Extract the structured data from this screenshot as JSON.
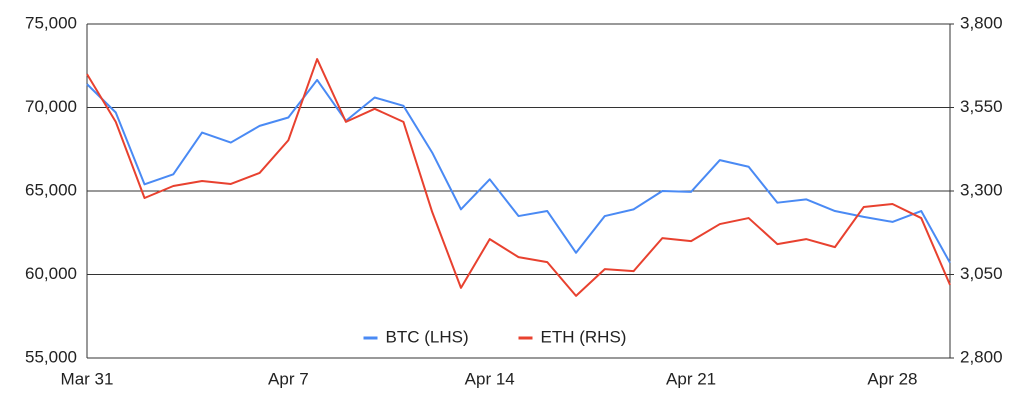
{
  "chart_data": {
    "type": "line",
    "categories": [
      "Mar 31",
      null,
      null,
      null,
      null,
      null,
      null,
      "Apr 7",
      null,
      null,
      null,
      null,
      null,
      null,
      "Apr 14",
      null,
      null,
      null,
      null,
      null,
      null,
      "Apr 21",
      null,
      null,
      null,
      null,
      null,
      null,
      "Apr 28",
      null,
      null
    ],
    "series": [
      {
        "name": "BTC (LHS)",
        "color": "#4a8af4",
        "axis": "y",
        "values": [
          71400,
          69700,
          65400,
          66000,
          68500,
          67900,
          68900,
          69400,
          71650,
          69200,
          70600,
          70100,
          67300,
          63900,
          65700,
          63500,
          63800,
          61300,
          63500,
          63900,
          65000,
          64950,
          66850,
          66450,
          64300,
          64500,
          63800,
          63450,
          63150,
          63800,
          60700
        ]
      },
      {
        "name": "ETH (RHS)",
        "color": "#e8412f",
        "axis": "y2",
        "values": [
          3650,
          3507,
          3279,
          3315,
          3330,
          3321,
          3354,
          3452,
          3695,
          3507,
          3546,
          3507,
          3237,
          3010,
          3156,
          3102,
          3087,
          2986,
          3066,
          3060,
          3159,
          3150,
          3201,
          3219,
          3141,
          3156,
          3132,
          3252,
          3261,
          3219,
          3019
        ]
      }
    ],
    "ylim": [
      55000,
      75000
    ],
    "yticks": [
      {
        "value": 55000,
        "label": "55,000"
      },
      {
        "value": 60000,
        "label": "60,000"
      },
      {
        "value": 65000,
        "label": "65,000"
      },
      {
        "value": 70000,
        "label": "70,000"
      },
      {
        "value": 75000,
        "label": "75,000"
      }
    ],
    "y2lim": [
      2800,
      3800
    ],
    "y2ticks": [
      {
        "value": 2800,
        "label": "2,800"
      },
      {
        "value": 3050,
        "label": "3,050"
      },
      {
        "value": 3300,
        "label": "3,300"
      },
      {
        "value": 3550,
        "label": "3,550"
      },
      {
        "value": 3800,
        "label": "3,800"
      }
    ],
    "grid": true,
    "legend": "bottom"
  }
}
